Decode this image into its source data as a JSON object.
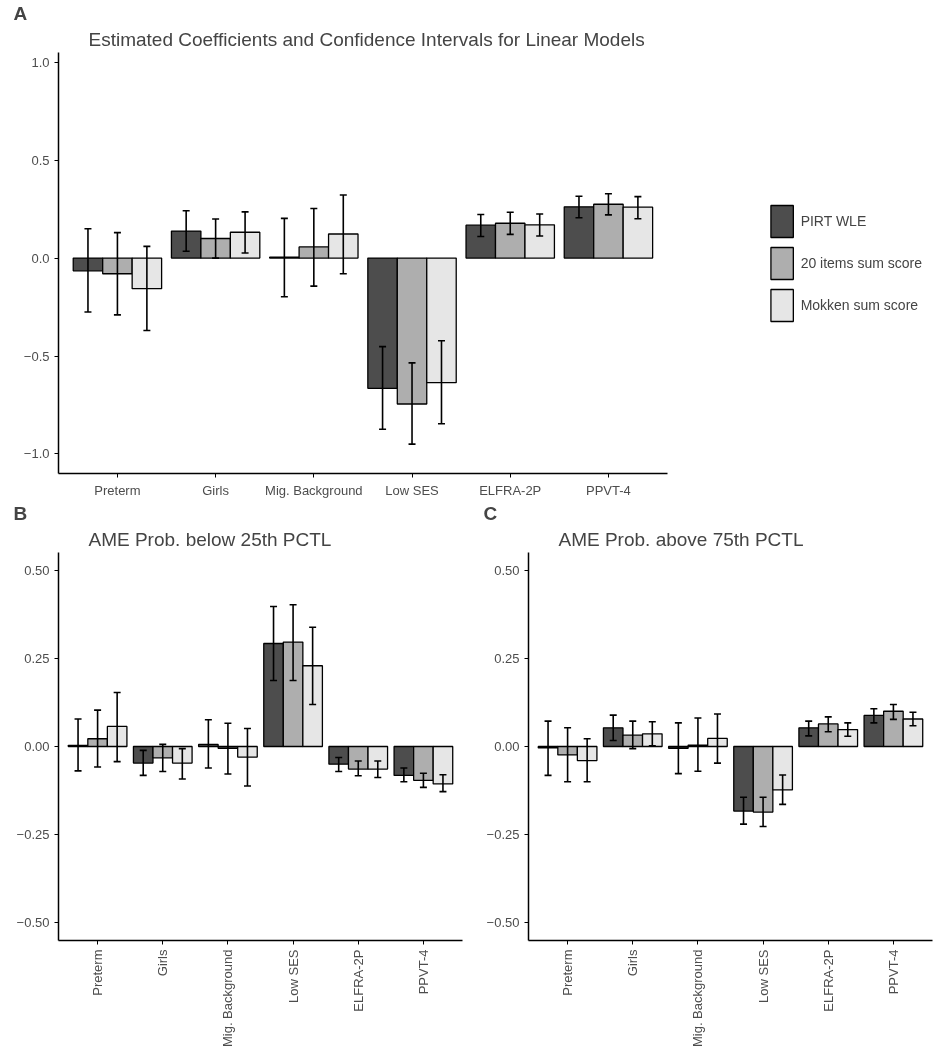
{
  "chart_data": [
    {
      "type": "bar",
      "title": "Estimated Coefficients and Confidence Intervals for Linear Models",
      "annotations": [
        "A"
      ],
      "categories": [
        "Preterm",
        "Girls",
        "Mig. Background",
        "Low SES",
        "ELFRA-2P",
        "PPVT-4"
      ],
      "ylim": [
        -1.1,
        1.05
      ],
      "yticks": [
        {
          "value": -1,
          "label": "−1.0"
        },
        {
          "value": -0.5,
          "label": "−0.5"
        },
        {
          "value": 0,
          "label": "0.0"
        },
        {
          "value": 0.5,
          "label": "0.5"
        },
        {
          "value": 1,
          "label": "1.0"
        }
      ],
      "grid": false,
      "legend": "right",
      "series": [
        {
          "name": "PIRT WLE",
          "color": "#4d4d4d",
          "values": [
            -0.065,
            0.138,
            0.005,
            -0.665,
            0.168,
            0.262
          ],
          "errors": [
            [
              -0.275,
              0.15
            ],
            [
              0.035,
              0.242
            ],
            [
              -0.197,
              0.203
            ],
            [
              -0.874,
              -0.452
            ],
            [
              0.11,
              0.223
            ],
            [
              0.206,
              0.316
            ]
          ]
        },
        {
          "name": "20 items sum score",
          "color": "#aeaeae",
          "values": [
            -0.08,
            0.1,
            0.057,
            -0.745,
            0.178,
            0.275
          ],
          "errors": [
            [
              -0.29,
              0.13
            ],
            [
              0.0,
              0.2
            ],
            [
              -0.143,
              0.253
            ],
            [
              -0.95,
              -0.535
            ],
            [
              0.121,
              0.234
            ],
            [
              0.221,
              0.329
            ]
          ]
        },
        {
          "name": "Mokken sum score",
          "color": "#e6e6e6",
          "values": [
            -0.156,
            0.132,
            0.123,
            -0.636,
            0.17,
            0.26
          ],
          "errors": [
            [
              -0.37,
              0.06
            ],
            [
              0.026,
              0.236
            ],
            [
              -0.08,
              0.322
            ],
            [
              -0.846,
              -0.422
            ],
            [
              0.113,
              0.225
            ],
            [
              0.201,
              0.314
            ]
          ]
        }
      ]
    },
    {
      "type": "bar",
      "title": "AME Prob. below 25th PCTL",
      "annotations": [
        "B"
      ],
      "categories": [
        "Preterm",
        "Girls",
        "Mig. Background",
        "Low SES",
        "ELFRA-2P",
        "PPVT-4"
      ],
      "ylim": [
        -0.55,
        0.55
      ],
      "yticks": [
        {
          "value": -0.5,
          "label": "−0.50"
        },
        {
          "value": -0.25,
          "label": "−0.25"
        },
        {
          "value": 0,
          "label": "0.00"
        },
        {
          "value": 0.25,
          "label": "0.25"
        },
        {
          "value": 0.5,
          "label": "0.50"
        }
      ],
      "grid": false,
      "series": [
        {
          "color": "#4d4d4d",
          "values": [
            0.003,
            -0.047,
            0.006,
            0.292,
            -0.05,
            -0.082
          ],
          "errors": [
            [
              -0.069,
              0.078
            ],
            [
              -0.082,
              -0.011
            ],
            [
              -0.061,
              0.076
            ],
            [
              0.187,
              0.397
            ],
            [
              -0.071,
              -0.031
            ],
            [
              -0.1,
              -0.061
            ]
          ]
        },
        {
          "color": "#aeaeae",
          "values": [
            0.022,
            -0.032,
            -0.005,
            0.296,
            -0.064,
            -0.096
          ],
          "errors": [
            [
              -0.058,
              0.103
            ],
            [
              -0.071,
              0.006
            ],
            [
              -0.078,
              0.066
            ],
            [
              0.187,
              0.402
            ],
            [
              -0.083,
              -0.041
            ],
            [
              -0.116,
              -0.076
            ]
          ]
        },
        {
          "color": "#e6e6e6",
          "values": [
            0.057,
            -0.047,
            -0.03,
            0.229,
            -0.064,
            -0.106
          ],
          "errors": [
            [
              -0.043,
              0.153
            ],
            [
              -0.092,
              -0.006
            ],
            [
              -0.112,
              0.051
            ],
            [
              0.119,
              0.338
            ],
            [
              -0.088,
              -0.041
            ],
            [
              -0.128,
              -0.08
            ]
          ]
        }
      ]
    },
    {
      "type": "bar",
      "title": "AME Prob. above 75th PCTL",
      "annotations": [
        "C"
      ],
      "categories": [
        "Preterm",
        "Girls",
        "Mig. Background",
        "Low SES",
        "ELFRA-2P",
        "PPVT-4"
      ],
      "ylim": [
        -0.55,
        0.55
      ],
      "yticks": [
        {
          "value": -0.5,
          "label": "−0.50"
        },
        {
          "value": -0.25,
          "label": "−0.25"
        },
        {
          "value": 0,
          "label": "0.00"
        },
        {
          "value": 0.25,
          "label": "0.25"
        },
        {
          "value": 0.5,
          "label": "0.50"
        }
      ],
      "grid": false,
      "series": [
        {
          "color": "#4d4d4d",
          "values": [
            -0.004,
            0.053,
            -0.005,
            -0.183,
            0.053,
            0.088
          ],
          "errors": [
            [
              -0.082,
              0.072
            ],
            [
              0.017,
              0.089
            ],
            [
              -0.077,
              0.067
            ],
            [
              -0.22,
              -0.144
            ],
            [
              0.03,
              0.072
            ],
            [
              0.067,
              0.107
            ]
          ]
        },
        {
          "color": "#aeaeae",
          "values": [
            -0.024,
            0.032,
            0.004,
            -0.186,
            0.064,
            0.1
          ],
          "errors": [
            [
              -0.1,
              0.053
            ],
            [
              -0.006,
              0.072
            ],
            [
              -0.07,
              0.081
            ],
            [
              -0.227,
              -0.144
            ],
            [
              0.042,
              0.084
            ],
            [
              0.077,
              0.119
            ]
          ]
        },
        {
          "color": "#e6e6e6",
          "values": [
            -0.04,
            0.036,
            0.023,
            -0.123,
            0.048,
            0.078
          ],
          "errors": [
            [
              -0.1,
              0.022
            ],
            [
              0.002,
              0.07
            ],
            [
              -0.047,
              0.092
            ],
            [
              -0.164,
              -0.081
            ],
            [
              0.029,
              0.067
            ],
            [
              0.059,
              0.097
            ]
          ]
        }
      ]
    }
  ]
}
